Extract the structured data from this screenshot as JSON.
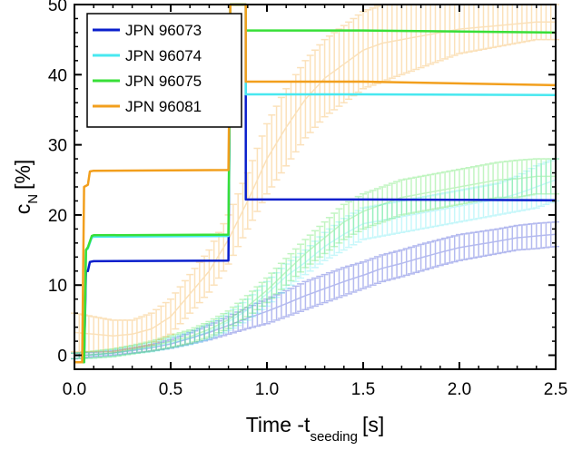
{
  "chart_data": {
    "type": "line",
    "xlabel_main": "Time -t",
    "xlabel_sub": "seeding",
    "xlabel_unit": "[s]",
    "ylabel_main": "c",
    "ylabel_sub": "N",
    "ylabel_unit": "[%]",
    "xlim": [
      0.0,
      2.5
    ],
    "ylim": [
      -2,
      50
    ],
    "xticks": [
      "0.0",
      "0.5",
      "1.0",
      "1.5",
      "2.0",
      "2.5"
    ],
    "xtick_values": [
      0.0,
      0.5,
      1.0,
      1.5,
      2.0,
      2.5
    ],
    "yticks": [
      "0",
      "10",
      "20",
      "30",
      "40",
      "50"
    ],
    "ytick_values": [
      0,
      10,
      20,
      30,
      40,
      50
    ],
    "legend_position": "top-left",
    "series": [
      {
        "name": "JPN 96073",
        "color": "#0a1fcc",
        "step": [
          [
            0.0,
            -1
          ],
          [
            0.05,
            -1
          ],
          [
            0.06,
            12
          ],
          [
            0.07,
            12
          ],
          [
            0.08,
            13.3
          ],
          [
            0.1,
            13.4
          ],
          [
            0.8,
            13.5
          ],
          [
            0.81,
            50
          ],
          [
            0.89,
            50
          ],
          [
            0.89,
            22.2
          ],
          [
            1.5,
            22.2
          ],
          [
            2.5,
            22.1
          ]
        ],
        "bands": [
          [
            0.0,
            -0.5,
            0.3
          ],
          [
            0.1,
            -0.2,
            0.4
          ],
          [
            0.2,
            0.0,
            0.6
          ],
          [
            0.3,
            0.3,
            1.0
          ],
          [
            0.4,
            0.6,
            1.5
          ],
          [
            0.5,
            1.0,
            2.2
          ],
          [
            0.6,
            1.6,
            3.2
          ],
          [
            0.7,
            2.2,
            4.3
          ],
          [
            0.8,
            3.0,
            5.5
          ],
          [
            0.9,
            3.8,
            6.8
          ],
          [
            1.0,
            4.5,
            8.0
          ],
          [
            1.1,
            5.5,
            9.2
          ],
          [
            1.2,
            6.5,
            10.5
          ],
          [
            1.3,
            7.5,
            11.5
          ],
          [
            1.4,
            8.5,
            12.5
          ],
          [
            1.5,
            9.5,
            13.3
          ],
          [
            1.6,
            10.5,
            14.3
          ],
          [
            1.7,
            11.2,
            15.0
          ],
          [
            1.8,
            12.0,
            15.8
          ],
          [
            1.9,
            12.8,
            16.5
          ],
          [
            2.0,
            13.5,
            17.2
          ],
          [
            2.1,
            14.0,
            17.6
          ],
          [
            2.2,
            14.5,
            18.0
          ],
          [
            2.3,
            15.0,
            18.5
          ],
          [
            2.4,
            15.2,
            18.8
          ],
          [
            2.5,
            15.5,
            19.0
          ]
        ]
      },
      {
        "name": "JPN 96074",
        "color": "#48e8f0",
        "step": [
          [
            0.0,
            -1
          ],
          [
            0.05,
            -1
          ],
          [
            0.06,
            15
          ],
          [
            0.07,
            15.2
          ],
          [
            0.09,
            16.8
          ],
          [
            0.1,
            16.9
          ],
          [
            0.8,
            17.0
          ],
          [
            0.81,
            50
          ],
          [
            0.89,
            50
          ],
          [
            0.89,
            37.2
          ],
          [
            1.5,
            37.2
          ],
          [
            2.5,
            37.1
          ]
        ],
        "bands": [
          [
            0.0,
            -0.5,
            0.3
          ],
          [
            0.1,
            -0.4,
            0.5
          ],
          [
            0.2,
            -0.2,
            0.8
          ],
          [
            0.3,
            0.2,
            1.3
          ],
          [
            0.4,
            0.5,
            1.8
          ],
          [
            0.5,
            1.0,
            2.5
          ],
          [
            0.6,
            1.5,
            3.3
          ],
          [
            0.7,
            2.3,
            4.5
          ],
          [
            0.8,
            3.5,
            6.0
          ],
          [
            0.9,
            5.0,
            8.0
          ],
          [
            1.0,
            7.0,
            10.5
          ],
          [
            1.1,
            9.5,
            13.0
          ],
          [
            1.2,
            11.5,
            15.0
          ],
          [
            1.3,
            13.5,
            17.5
          ],
          [
            1.4,
            15.0,
            19.5
          ],
          [
            1.5,
            16.5,
            21.0
          ],
          [
            1.6,
            17.0,
            21.5
          ],
          [
            1.7,
            17.5,
            22.0
          ],
          [
            1.8,
            18.0,
            22.5
          ],
          [
            1.9,
            18.5,
            23.0
          ],
          [
            2.0,
            19.0,
            23.5
          ],
          [
            2.1,
            19.5,
            24.0
          ],
          [
            2.2,
            20.0,
            24.5
          ],
          [
            2.3,
            20.5,
            25.5
          ],
          [
            2.4,
            21.0,
            27.0
          ],
          [
            2.5,
            22.0,
            28.0
          ]
        ]
      },
      {
        "name": "JPN 96075",
        "color": "#38df38",
        "step": [
          [
            0.0,
            -1
          ],
          [
            0.05,
            -1
          ],
          [
            0.06,
            15
          ],
          [
            0.07,
            15.4
          ],
          [
            0.09,
            17.0
          ],
          [
            0.1,
            17.1
          ],
          [
            0.8,
            17.2
          ],
          [
            0.81,
            50
          ],
          [
            0.89,
            50
          ],
          [
            0.89,
            46.3
          ],
          [
            1.5,
            46.3
          ],
          [
            2.5,
            46.0
          ]
        ],
        "bands": [
          [
            0.0,
            -0.5,
            0.3
          ],
          [
            0.1,
            -0.4,
            0.6
          ],
          [
            0.2,
            -0.2,
            0.9
          ],
          [
            0.3,
            0.2,
            1.4
          ],
          [
            0.4,
            0.6,
            2.0
          ],
          [
            0.5,
            1.1,
            2.8
          ],
          [
            0.6,
            1.7,
            3.6
          ],
          [
            0.7,
            2.6,
            4.8
          ],
          [
            0.8,
            3.8,
            6.3
          ],
          [
            0.9,
            5.5,
            8.5
          ],
          [
            1.0,
            7.5,
            11.0
          ],
          [
            1.1,
            10.0,
            13.8
          ],
          [
            1.2,
            12.5,
            16.5
          ],
          [
            1.3,
            14.5,
            19.0
          ],
          [
            1.4,
            16.5,
            21.5
          ],
          [
            1.5,
            18.0,
            23.0
          ],
          [
            1.6,
            19.0,
            24.0
          ],
          [
            1.7,
            20.0,
            25.0
          ],
          [
            1.8,
            20.5,
            25.5
          ],
          [
            1.9,
            21.0,
            26.0
          ],
          [
            2.0,
            21.5,
            26.5
          ],
          [
            2.1,
            22.0,
            27.0
          ],
          [
            2.2,
            22.5,
            27.5
          ],
          [
            2.3,
            22.5,
            27.8
          ],
          [
            2.4,
            23.0,
            28.0
          ],
          [
            2.5,
            23.0,
            28.0
          ]
        ]
      },
      {
        "name": "JPN 96081",
        "color": "#f29f1d",
        "step": [
          [
            0.0,
            -1
          ],
          [
            0.04,
            -1
          ],
          [
            0.05,
            24
          ],
          [
            0.07,
            24.3
          ],
          [
            0.08,
            26.2
          ],
          [
            0.1,
            26.3
          ],
          [
            0.8,
            26.4
          ],
          [
            0.81,
            50
          ],
          [
            0.89,
            50
          ],
          [
            0.89,
            39.0
          ],
          [
            1.5,
            39.0
          ],
          [
            2.5,
            38.5
          ]
        ],
        "bands": [
          [
            0.0,
            0.5,
            6.0
          ],
          [
            0.1,
            0.5,
            5.5
          ],
          [
            0.2,
            0.5,
            5.0
          ],
          [
            0.3,
            1.0,
            5.0
          ],
          [
            0.4,
            1.5,
            6.0
          ],
          [
            0.5,
            3.0,
            8.0
          ],
          [
            0.6,
            6.0,
            11.5
          ],
          [
            0.7,
            9.0,
            15.0
          ],
          [
            0.8,
            13.0,
            20.0
          ],
          [
            0.9,
            18.0,
            26.0
          ],
          [
            1.0,
            23.0,
            33.0
          ],
          [
            1.1,
            27.0,
            38.0
          ],
          [
            1.2,
            31.0,
            42.0
          ],
          [
            1.3,
            34.0,
            45.0
          ],
          [
            1.4,
            36.0,
            47.0
          ],
          [
            1.5,
            38.0,
            49.0
          ],
          [
            1.6,
            39.0,
            50.0
          ],
          [
            1.7,
            40.0,
            50.0
          ],
          [
            1.8,
            41.0,
            50.0
          ],
          [
            1.9,
            42.0,
            50.0
          ],
          [
            2.0,
            43.0,
            50.0
          ],
          [
            2.1,
            43.5,
            50.0
          ],
          [
            2.2,
            44.0,
            50.0
          ],
          [
            2.3,
            44.5,
            50.0
          ],
          [
            2.4,
            45.0,
            50.0
          ],
          [
            2.5,
            45.0,
            50.0
          ]
        ]
      }
    ]
  }
}
